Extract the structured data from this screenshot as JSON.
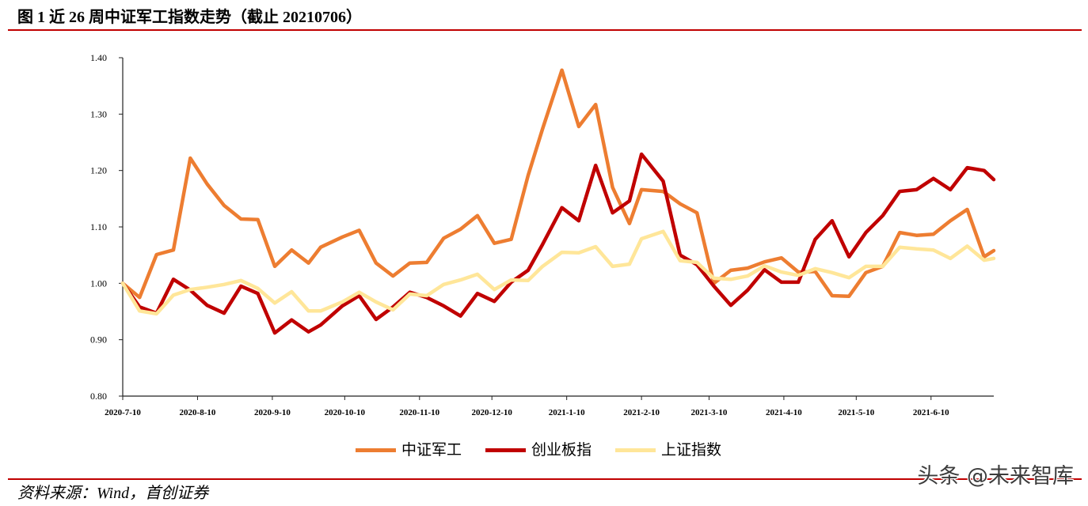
{
  "chart_data": {
    "type": "line",
    "title": "图 1 近 26 周中证军工指数走势（截止 20210706）",
    "x": [
      "2020-7-10",
      "2020-7-17",
      "2020-7-24",
      "2020-7-31",
      "2020-8-7",
      "2020-8-14",
      "2020-8-21",
      "2020-8-28",
      "2020-9-4",
      "2020-9-11",
      "2020-9-18",
      "2020-9-25",
      "2020-9-30",
      "2020-10-9",
      "2020-10-16",
      "2020-10-23",
      "2020-10-30",
      "2020-11-6",
      "2020-11-13",
      "2020-11-20",
      "2020-11-27",
      "2020-12-4",
      "2020-12-11",
      "2020-12-18",
      "2020-12-25",
      "2020-12-31",
      "2021-1-8",
      "2021-1-15",
      "2021-1-22",
      "2021-1-29",
      "2021-2-5",
      "2021-2-10",
      "2021-2-19",
      "2021-2-26",
      "2021-3-5",
      "2021-3-12",
      "2021-3-19",
      "2021-3-26",
      "2021-4-2",
      "2021-4-9",
      "2021-4-16",
      "2021-4-23",
      "2021-4-30",
      "2021-5-7",
      "2021-5-14",
      "2021-5-21",
      "2021-5-28",
      "2021-6-4",
      "2021-6-11",
      "2021-6-18",
      "2021-6-25",
      "2021-7-2",
      "2021-7-6"
    ],
    "xlim": [
      "2020-7-10",
      "2021-7-6"
    ],
    "x_tick_labels": [
      "2020-7-10",
      "2020-8-10",
      "2020-9-10",
      "2020-10-10",
      "2020-11-10",
      "2020-12-10",
      "2021-1-10",
      "2021-2-10",
      "2021-3-10",
      "2021-4-10",
      "2021-5-10",
      "2021-6-10"
    ],
    "ylim": [
      0.8,
      1.4
    ],
    "y_tick_labels": [
      "0.80",
      "0.90",
      "1.00",
      "1.10",
      "1.20",
      "1.30",
      "1.40"
    ],
    "grid": false,
    "legend_position": "bottom",
    "series": [
      {
        "name": "中证军工",
        "color": "#ED7D31",
        "values": [
          1.0,
          0.975,
          1.051,
          1.059,
          1.222,
          1.176,
          1.138,
          1.114,
          1.113,
          1.03,
          1.059,
          1.036,
          1.064,
          1.082,
          1.094,
          1.036,
          1.013,
          1.036,
          1.037,
          1.08,
          1.096,
          1.12,
          1.071,
          1.078,
          1.191,
          1.274,
          1.378,
          1.278,
          1.317,
          1.17,
          1.106,
          1.166,
          1.163,
          1.141,
          1.125,
          1.0,
          1.023,
          1.027,
          1.038,
          1.045,
          1.02,
          1.021,
          0.978,
          0.977,
          1.019,
          1.03,
          1.09,
          1.085,
          1.087,
          1.111,
          1.131,
          1.047,
          1.058
        ]
      },
      {
        "name": "创业板指",
        "color": "#C00000",
        "values": [
          1.0,
          0.958,
          0.947,
          1.007,
          0.988,
          0.961,
          0.947,
          0.995,
          0.982,
          0.912,
          0.935,
          0.914,
          0.926,
          0.96,
          0.978,
          0.936,
          0.958,
          0.984,
          0.975,
          0.96,
          0.942,
          0.982,
          0.968,
          1.002,
          1.023,
          1.069,
          1.134,
          1.111,
          1.209,
          1.125,
          1.146,
          1.229,
          1.181,
          1.05,
          1.033,
          0.995,
          0.961,
          0.988,
          1.024,
          1.002,
          1.002,
          1.078,
          1.111,
          1.047,
          1.09,
          1.12,
          1.163,
          1.166,
          1.186,
          1.166,
          1.205,
          1.2,
          1.184
        ]
      },
      {
        "name": "上证指数",
        "color": "#FFE699",
        "values": [
          1.0,
          0.951,
          0.946,
          0.979,
          0.989,
          0.993,
          0.998,
          1.005,
          0.991,
          0.965,
          0.985,
          0.951,
          0.951,
          0.967,
          0.984,
          0.967,
          0.953,
          0.981,
          0.978,
          0.998,
          1.006,
          1.016,
          0.989,
          1.006,
          1.005,
          1.03,
          1.055,
          1.054,
          1.065,
          1.03,
          1.034,
          1.079,
          1.092,
          1.04,
          1.037,
          1.009,
          1.007,
          1.013,
          1.031,
          1.02,
          1.014,
          1.026,
          1.019,
          1.01,
          1.03,
          1.03,
          1.064,
          1.061,
          1.059,
          1.044,
          1.066,
          1.041,
          1.044
        ]
      }
    ]
  },
  "source": "资料来源：Wind，首创证券",
  "watermark": "头条 @未来智库",
  "rule_color": "#C00000"
}
